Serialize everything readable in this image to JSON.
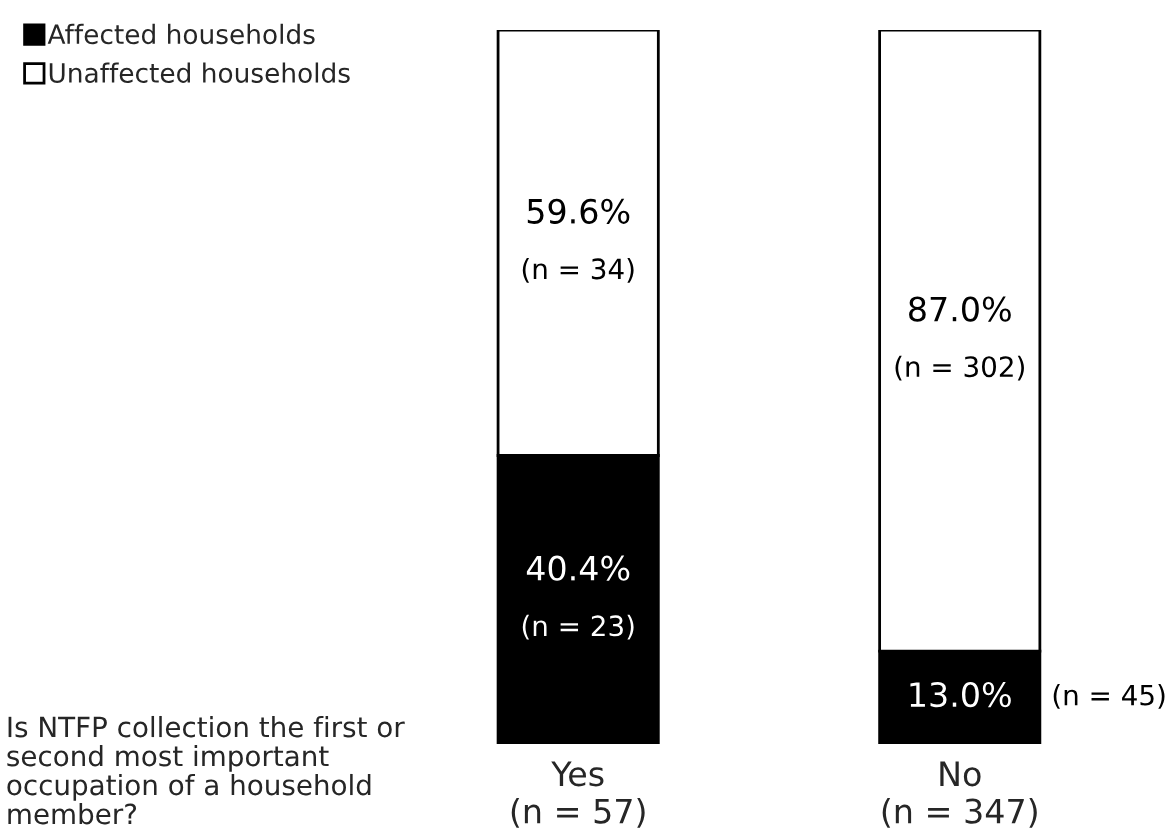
{
  "chart_data": {
    "type": "bar",
    "stacked": true,
    "categories": [
      "Yes\n(n = 57)",
      "No\n(n = 347)"
    ],
    "xlabel": "Is NTFP collection the first or\nsecond most important\noccupation of a household\nmember?",
    "series": [
      {
        "name": "Affected households",
        "color": "#000000",
        "values": [
          40.4,
          13.0
        ],
        "value_labels": [
          "40.4%\n(n = 23)",
          "13.0%\n(n = 45)"
        ]
      },
      {
        "name": "Unaffected households",
        "color": "#ffffff",
        "values": [
          59.6,
          87.0
        ],
        "value_labels": [
          "59.6%\n(n = 34)",
          "87.0%\n(n = 302)"
        ]
      }
    ],
    "legend": "top left"
  }
}
